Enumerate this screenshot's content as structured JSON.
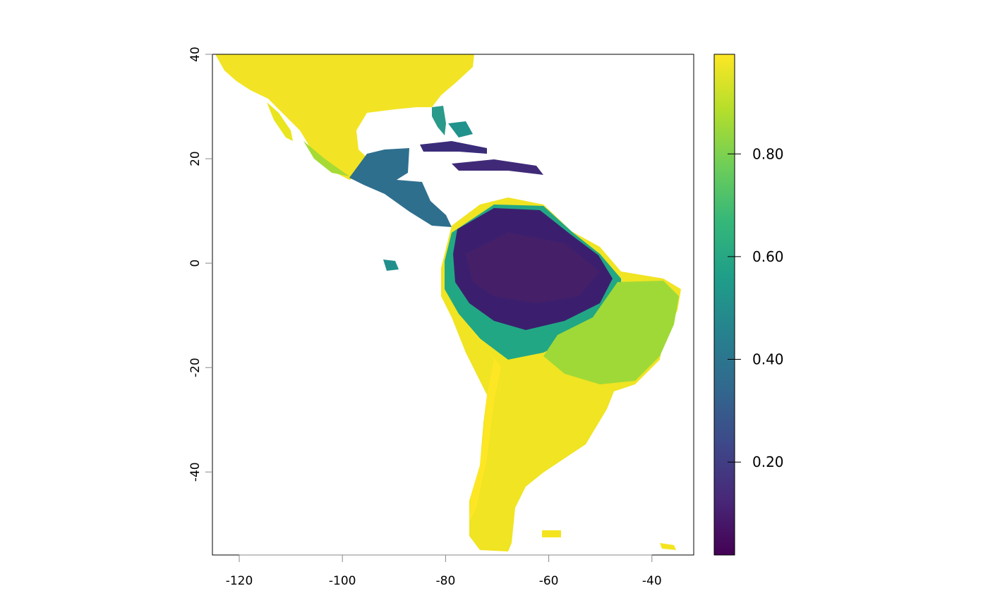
{
  "map": {
    "xlim": [
      -125.2,
      -31.9
    ],
    "ylim": [
      -55.9,
      40
    ],
    "xticks": [
      -120,
      -100,
      -80,
      -60,
      -40
    ],
    "yticks": [
      -40,
      -20,
      0,
      20,
      40
    ],
    "colorbar": {
      "lim": [
        0.019,
        0.994
      ],
      "ticks": [
        {
          "value": 0.2,
          "label": "0.20"
        },
        {
          "value": 0.4,
          "label": "0.40"
        },
        {
          "value": 0.6,
          "label": "0.60"
        },
        {
          "value": 0.8,
          "label": "0.80"
        }
      ],
      "colors": [
        "#440154",
        "#482878",
        "#3e4989",
        "#31688e",
        "#26828e",
        "#1f9e89",
        "#35b779",
        "#6ece58",
        "#b5de2b",
        "#fde725"
      ]
    }
  }
}
